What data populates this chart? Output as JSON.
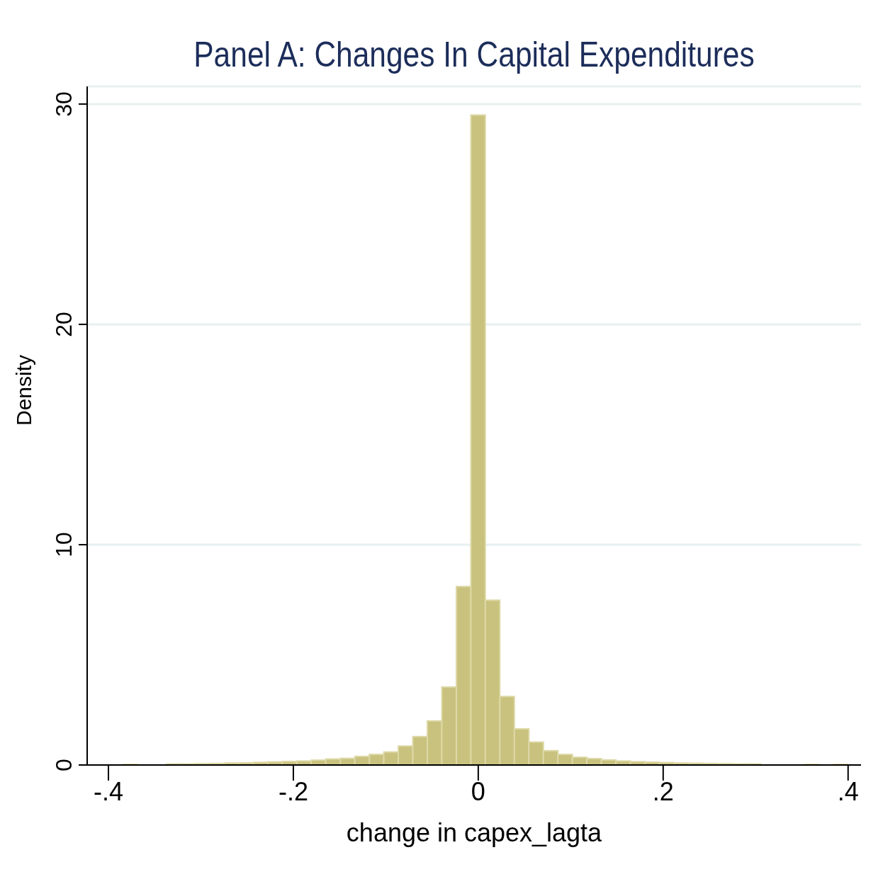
{
  "chart_data": {
    "type": "histogram",
    "title": "Panel A: Changes In Capital Expenditures",
    "xlabel": "change in capex_lagta",
    "ylabel": "Density",
    "bins": [
      -0.4,
      -0.3843,
      -0.3686,
      -0.3529,
      -0.3373,
      -0.3216,
      -0.3059,
      -0.2902,
      -0.2745,
      -0.2588,
      -0.2431,
      -0.2275,
      -0.2118,
      -0.1961,
      -0.1804,
      -0.1647,
      -0.149,
      -0.1333,
      -0.1176,
      -0.102,
      -0.0863,
      -0.0706,
      -0.0549,
      -0.0392,
      -0.0235,
      -0.0078,
      0.0078,
      0.0235,
      0.0392,
      0.0549,
      0.0706,
      0.0863,
      0.102,
      0.1176,
      0.1333,
      0.149,
      0.1647,
      0.1804,
      0.1961,
      0.2118,
      0.2275,
      0.2431,
      0.2588,
      0.2745,
      0.2902,
      0.3059,
      0.3216,
      0.3373,
      0.3529,
      0.3686,
      0.3843,
      0.4
    ],
    "values": [
      null,
      0.03,
      null,
      null,
      0.05,
      0.05,
      0.06,
      0.07,
      0.09,
      0.1,
      0.12,
      0.14,
      0.16,
      0.18,
      0.22,
      0.27,
      0.3,
      0.39,
      0.48,
      0.59,
      0.86,
      1.29,
      2.0,
      3.54,
      8.1,
      29.5,
      7.48,
      3.11,
      1.64,
      1.04,
      0.65,
      0.48,
      0.35,
      0.29,
      0.23,
      0.18,
      0.15,
      0.13,
      0.11,
      0.09,
      0.08,
      0.07,
      0.06,
      0.05,
      0.05,
      null,
      null,
      null,
      0.03,
      null,
      0.03
    ],
    "color": "#c9c27e",
    "xlim": [
      -0.423,
      0.414
    ],
    "xticks": [
      {
        "value": -0.4,
        "label": "-.4"
      },
      {
        "value": -0.2,
        "label": "-.2"
      },
      0,
      {
        "value": 0.2,
        "label": ".2"
      },
      {
        "value": 0.4,
        "label": ".4"
      }
    ],
    "ylim": [
      0,
      30.8
    ],
    "yticks": [
      0,
      10,
      20,
      30
    ],
    "grid": "y"
  }
}
